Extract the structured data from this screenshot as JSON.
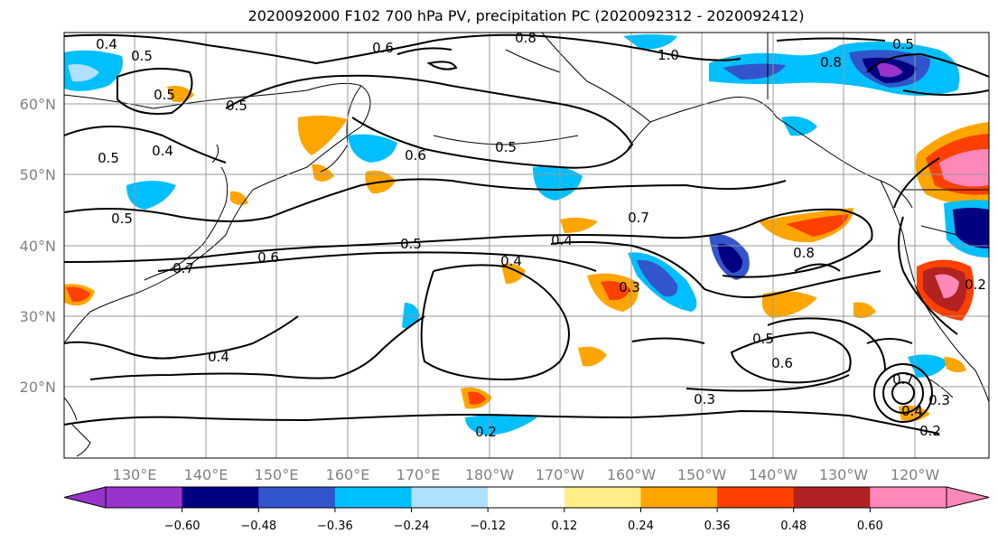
{
  "title": "2020092000 F102 700 hPa PV, precipitation PC (2020092312 - 2020092412)",
  "lat_labels": [
    "60°N",
    "50°N",
    "40°N",
    "30°N",
    "20°N"
  ],
  "lon_labels": [
    "130°E",
    "140°E",
    "150°E",
    "160°E",
    "170°E",
    "180°W",
    "170°W",
    "160°W",
    "150°W",
    "140°W",
    "130°W",
    "120°W"
  ],
  "colorbar": {
    "colors": [
      "#9933cc",
      "#000080",
      "#3355cc",
      "#00bfff",
      "#b0e0ff",
      "#ffffff",
      "#ffee88",
      "#ffa500",
      "#ff4000",
      "#b22222",
      "#ff88bb"
    ],
    "ticks": [
      "−0.60",
      "−0.48",
      "−0.36",
      "−0.24",
      "−0.12",
      "0.12",
      "0.24",
      "0.36",
      "0.48",
      "0.60"
    ]
  },
  "contour_labels": [
    "0.4",
    "0.5",
    "0.6",
    "0.8",
    "1.0",
    "0.5",
    "0.8",
    "0.5",
    "0.5",
    "0.4",
    "0.5",
    "0.6",
    "0.5",
    "0.7",
    "0.5",
    "0.6",
    "0.4",
    "0.4",
    "0.7",
    "0.3",
    "0.8",
    "0.5",
    "0.6",
    "0.4",
    "0.3",
    "0.2",
    "0.4",
    "0.3",
    "0.2",
    "0.2",
    "0.5",
    "0.7"
  ],
  "map_colors": {
    "land_outline": "#000000",
    "grid": "#999999",
    "contour": "#000000"
  }
}
